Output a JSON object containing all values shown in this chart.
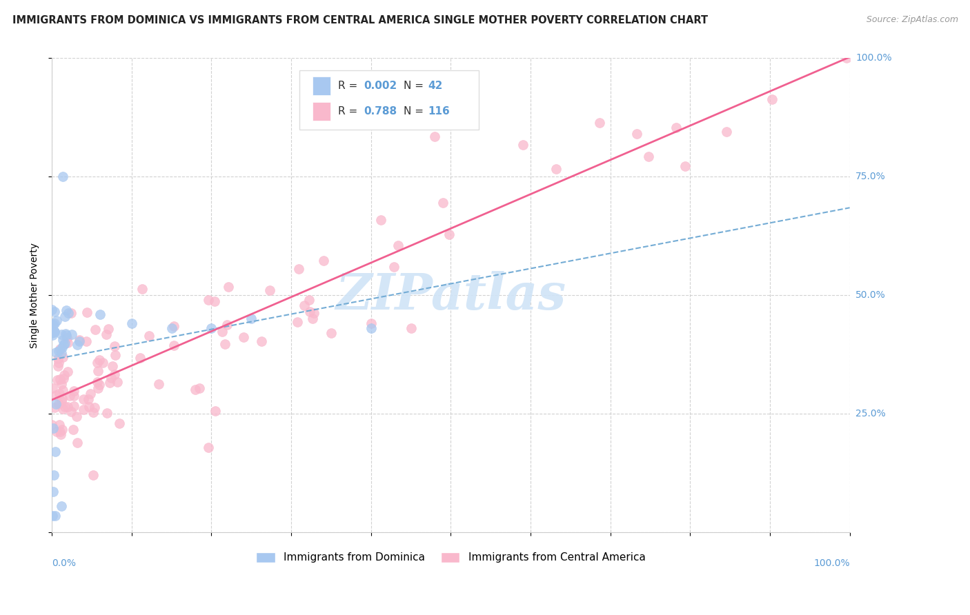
{
  "title": "IMMIGRANTS FROM DOMINICA VS IMMIGRANTS FROM CENTRAL AMERICA SINGLE MOTHER POVERTY CORRELATION CHART",
  "source": "Source: ZipAtlas.com",
  "ylabel": "Single Mother Poverty",
  "blue_R": "0.002",
  "blue_N": "42",
  "pink_R": "0.788",
  "pink_N": "116",
  "legend_label_blue": "Immigrants from Dominica",
  "legend_label_pink": "Immigrants from Central America",
  "blue_color": "#a8c8f0",
  "pink_color": "#f9b8cc",
  "blue_line_color": "#74acd5",
  "pink_line_color": "#f06090",
  "watermark_text": "ZIPatlas",
  "watermark_color": "#d0e4f7",
  "grid_color": "#cccccc",
  "background_color": "#ffffff",
  "right_axis_color": "#5b9bd5",
  "title_color": "#222222",
  "source_color": "#999999"
}
